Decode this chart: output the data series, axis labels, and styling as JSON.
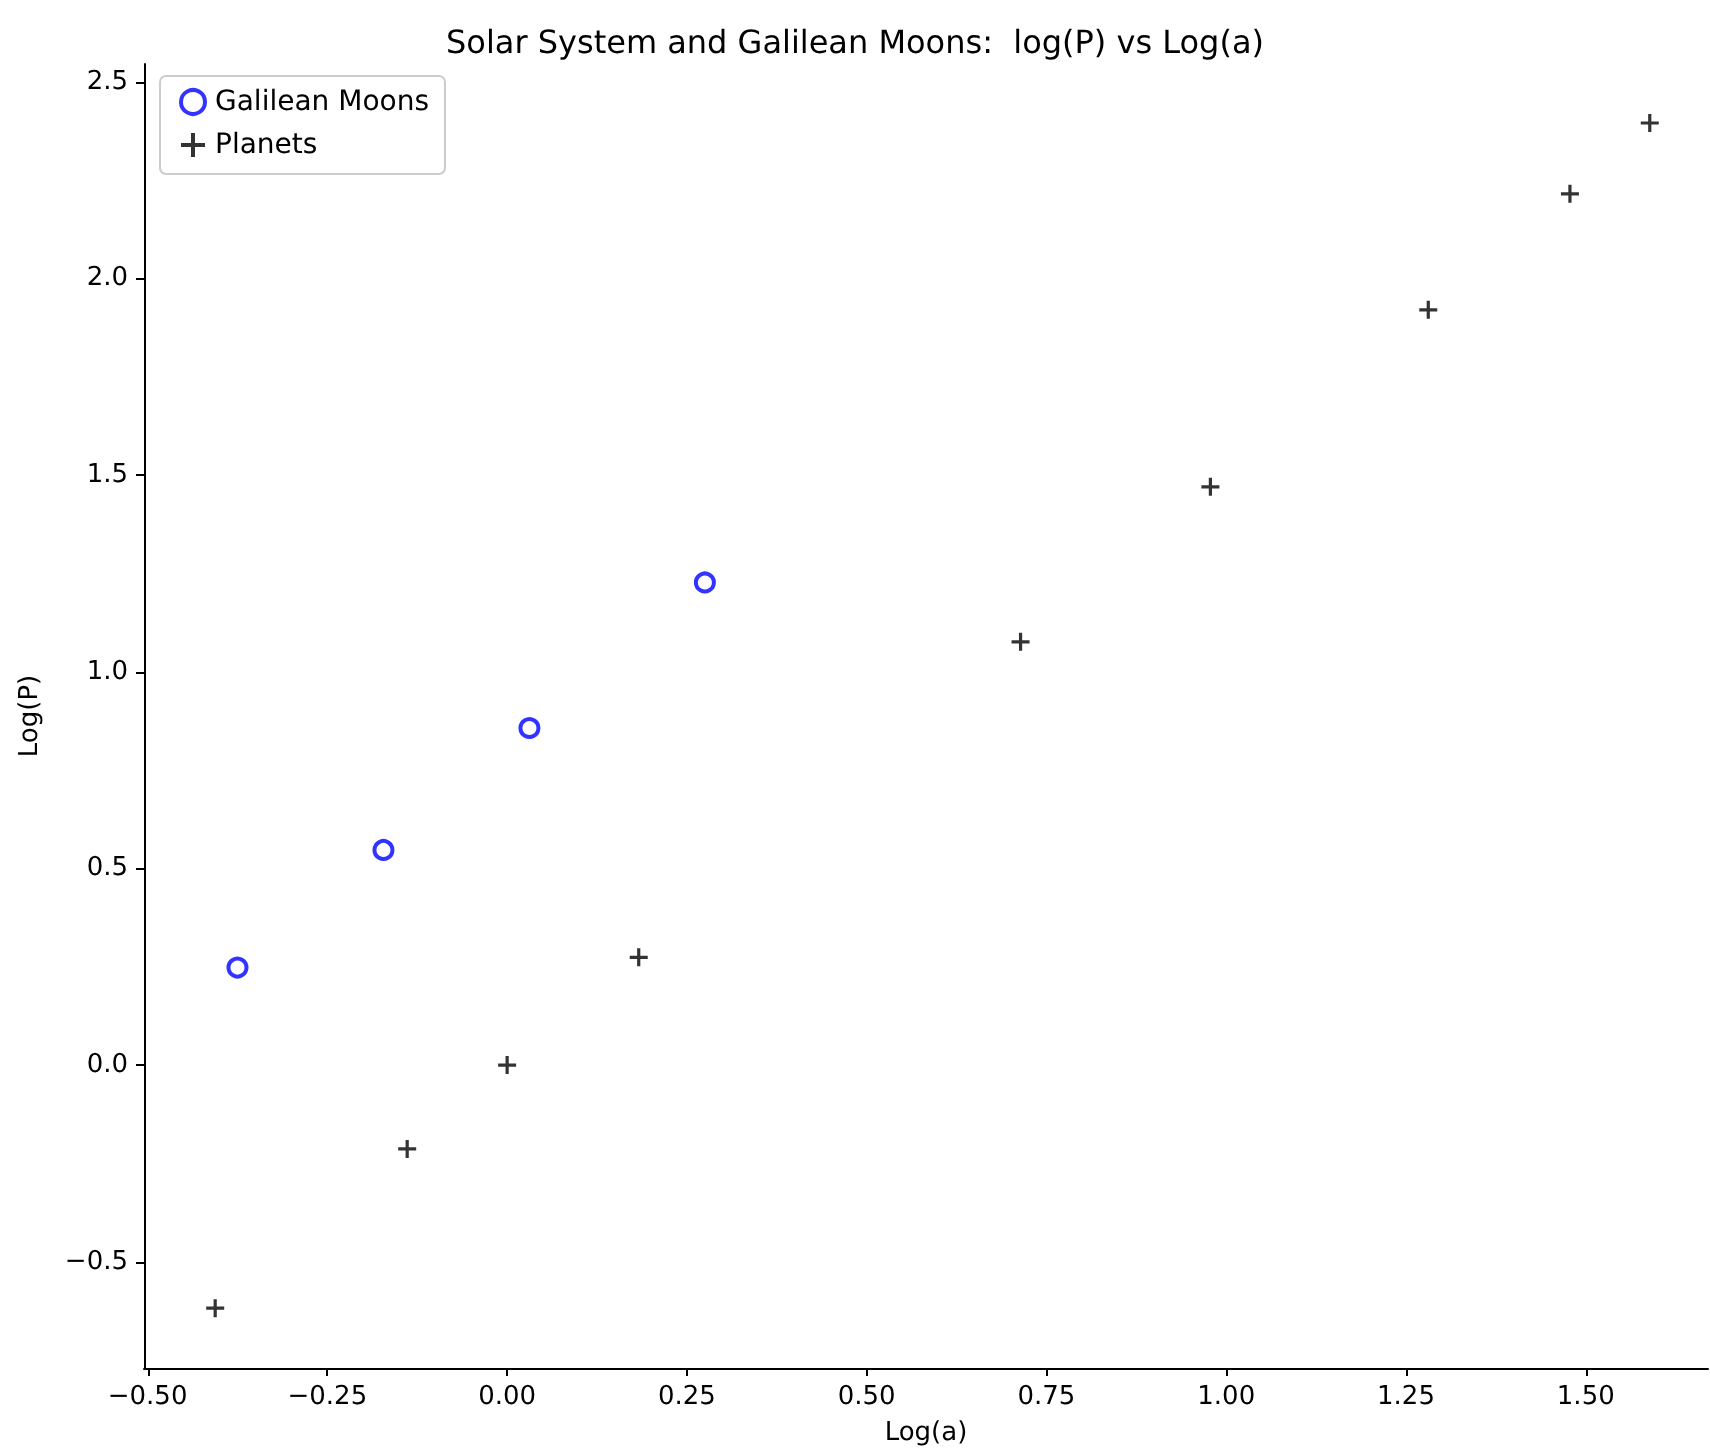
{
  "chart_data": {
    "type": "scatter",
    "title": "Solar System and Galilean Moons:  log(P) vs Log(a)",
    "xlabel": "Log(a)",
    "ylabel": "Log(P)",
    "series": [
      {
        "name": "Galilean Moons",
        "color": "#0000ff",
        "marker": "circle",
        "x": [
          -0.375,
          -0.172,
          0.031,
          0.275
        ],
        "values": [
          0.248,
          0.547,
          0.857,
          1.227
        ]
      },
      {
        "name": "Planets",
        "color": "#000000",
        "marker": "cross",
        "x": [
          -0.406,
          -0.139,
          0.0,
          0.183,
          0.714,
          0.978,
          1.281,
          1.478,
          1.589
        ],
        "values": [
          -0.618,
          -0.213,
          0.0,
          0.274,
          1.076,
          1.47,
          1.92,
          2.215,
          2.395
        ]
      }
    ],
    "xlim": [
      -0.505,
      1.67
    ],
    "ylim": [
      -0.77,
      2.545
    ],
    "xticks": [
      {
        "value": -0.5,
        "label": "−0.50"
      },
      {
        "value": -0.25,
        "label": "−0.25"
      },
      {
        "value": 0,
        "label": "0.00"
      },
      {
        "value": 0.25,
        "label": "0.25"
      },
      {
        "value": 0.5,
        "label": "0.50"
      },
      {
        "value": 0.75,
        "label": "0.75"
      },
      {
        "value": 1,
        "label": "1.00"
      },
      {
        "value": 1.25,
        "label": "1.25"
      },
      {
        "value": 1.5,
        "label": "1.50"
      }
    ],
    "yticks": [
      {
        "value": -0.5,
        "label": "−0.5"
      },
      {
        "value": 0,
        "label": "0.0"
      },
      {
        "value": 0.5,
        "label": "0.5"
      },
      {
        "value": 1,
        "label": "1.0"
      },
      {
        "value": 1.5,
        "label": "1.5"
      },
      {
        "value": 2,
        "label": "2.0"
      },
      {
        "value": 2.5,
        "label": "2.5"
      }
    ],
    "grid": false,
    "legend": "top left"
  }
}
